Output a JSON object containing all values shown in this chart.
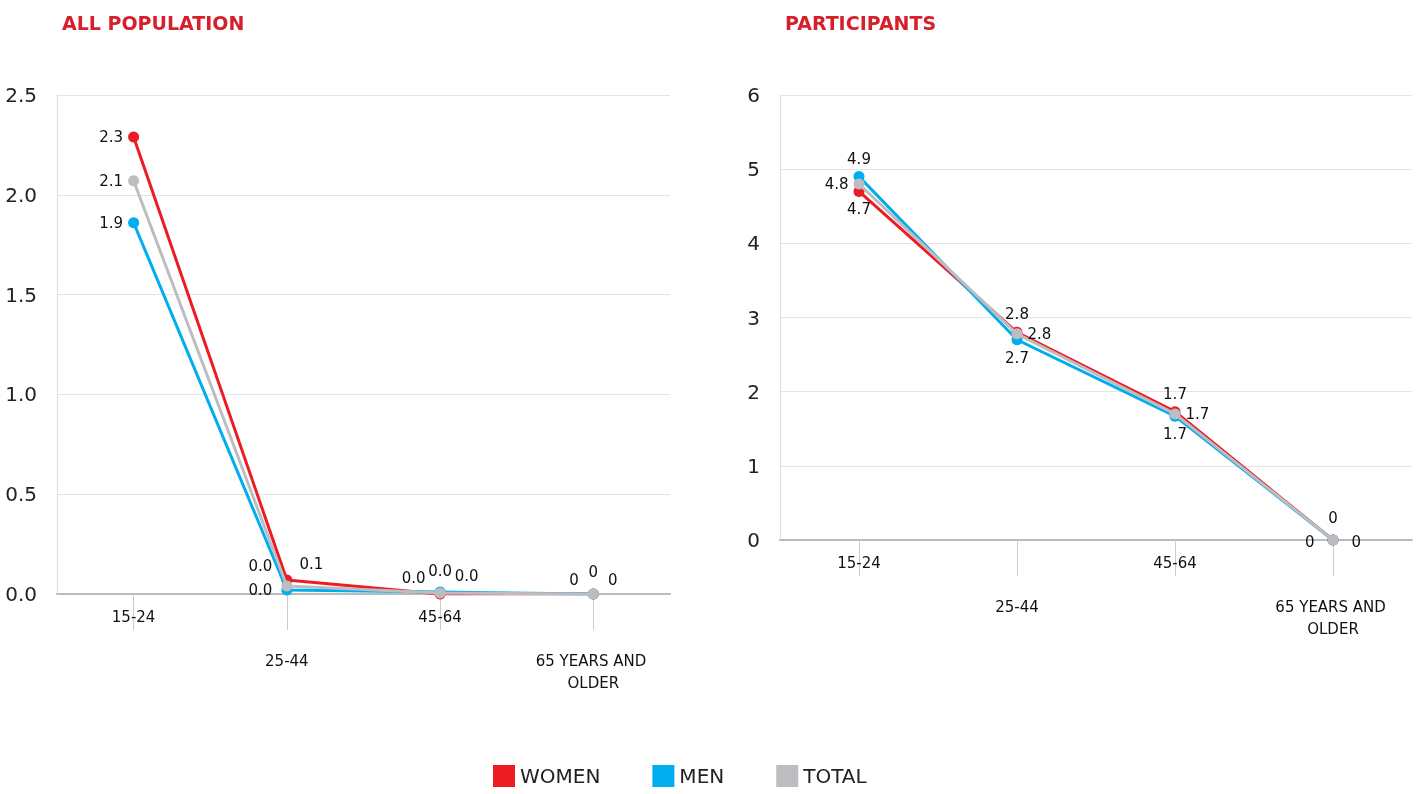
{
  "chart_data": [
    {
      "type": "line",
      "title": "ALL POPULATION",
      "categories": [
        "15-24",
        "25-44",
        "45-64",
        "65 YEARS AND OLDER"
      ],
      "ylim": [
        0,
        2.5
      ],
      "yticks": [
        "0.0",
        "0.5",
        "1.0",
        "1.5",
        "2.0",
        "2.5"
      ],
      "grid": "y",
      "marker": "circle",
      "legend": "bottom",
      "series": [
        {
          "name": "WOMEN",
          "color": "#ed1c24",
          "values": [
            2.29,
            0.07,
            0,
            0
          ],
          "value_labels": [
            "2.3",
            "0.1",
            "0.0",
            "0"
          ]
        },
        {
          "name": "MEN",
          "color": "#00aeef",
          "values": [
            1.86,
            0.02,
            0.01,
            0
          ],
          "value_labels": [
            "1.9",
            "0.0",
            "0.0",
            "0"
          ]
        },
        {
          "name": "TOTAL",
          "color": "#bcbdc0",
          "values": [
            2.07,
            0.04,
            0.005,
            0
          ],
          "value_labels": [
            "2.1",
            "0.0",
            "0.0",
            "0"
          ]
        }
      ]
    },
    {
      "type": "line",
      "title": "PARTICIPANTS",
      "categories": [
        "15-24",
        "25-44",
        "45-64",
        "65 YEARS AND OLDER"
      ],
      "ylim": [
        0,
        6
      ],
      "yticks": [
        0,
        1,
        2,
        3,
        4,
        5,
        6
      ],
      "grid": "y",
      "marker": "circle",
      "series": [
        {
          "color": "#ed1c24",
          "values": [
            4.7,
            2.8,
            1.73,
            0
          ],
          "value_labels": [
            "4.7",
            "2.8",
            "1.7",
            "0"
          ]
        },
        {
          "color": "#00aeef",
          "values": [
            4.9,
            2.7,
            1.67,
            0
          ],
          "value_labels": [
            "4.9",
            "2.7",
            "1.7",
            "0"
          ]
        },
        {
          "color": "#bcbdc0",
          "values": [
            4.8,
            2.78,
            1.7,
            0
          ],
          "value_labels": [
            "4.8",
            "2.8",
            "1.7",
            "0"
          ]
        }
      ]
    }
  ]
}
